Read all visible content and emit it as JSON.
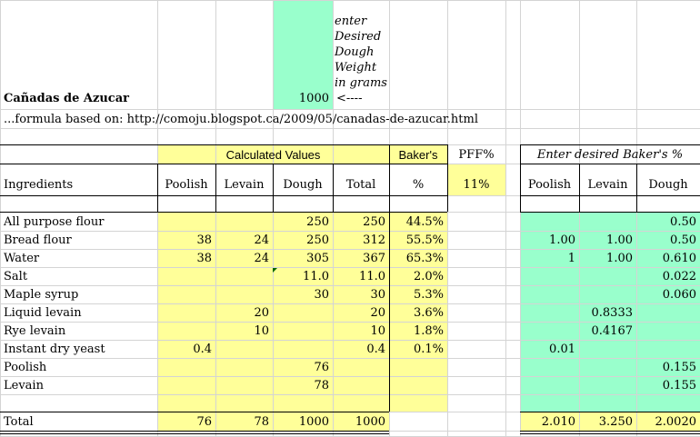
{
  "title": "Cañadas de Azucar",
  "formula_note": "...formula based on: http://comoju.blogspot.ca/2009/05/canadas-de-azucar.html",
  "desired_weight": "1000",
  "arrow": "<----",
  "instruction": "enter\nDesired\nDough\nWeight\nin grams",
  "calc_header": "Calculated Values",
  "bakers_header": "Baker's",
  "bakers_pct": "%",
  "pff_header": "PFF%",
  "pff_value": "11%",
  "enter_header": "Enter desired Baker's %",
  "col_headers": {
    "ingredients": "Ingredients",
    "poolish": "Poolish",
    "levain": "Levain",
    "dough": "Dough",
    "total": "Total",
    "e_poolish": "Poolish",
    "e_levain": "Levain",
    "e_dough": "Dough"
  },
  "rows": [
    {
      "name": "All purpose flour",
      "poolish": "",
      "levain": "",
      "dough": "250",
      "total": "250",
      "bakers": "44.5%",
      "e_poolish": "",
      "e_levain": "",
      "e_dough": "0.50"
    },
    {
      "name": "Bread flour",
      "poolish": "38",
      "levain": "24",
      "dough": "250",
      "total": "312",
      "bakers": "55.5%",
      "e_poolish": "1.00",
      "e_levain": "1.00",
      "e_dough": "0.50"
    },
    {
      "name": "Water",
      "poolish": "38",
      "levain": "24",
      "dough": "305",
      "total": "367",
      "bakers": "65.3%",
      "e_poolish": "1",
      "e_levain": "1.00",
      "e_dough": "0.610"
    },
    {
      "name": "Salt",
      "poolish": "",
      "levain": "",
      "dough": "11.0",
      "total": "11.0",
      "bakers": "2.0%",
      "e_poolish": "",
      "e_levain": "",
      "e_dough": "0.022"
    },
    {
      "name": "Maple syrup",
      "poolish": "",
      "levain": "",
      "dough": "30",
      "total": "30",
      "bakers": "5.3%",
      "e_poolish": "",
      "e_levain": "",
      "e_dough": "0.060"
    },
    {
      "name": "Liquid levain",
      "poolish": "",
      "levain": "20",
      "dough": "",
      "total": "20",
      "bakers": "3.6%",
      "e_poolish": "",
      "e_levain": "0.8333",
      "e_dough": ""
    },
    {
      "name": "Rye levain",
      "poolish": "",
      "levain": "10",
      "dough": "",
      "total": "10",
      "bakers": "1.8%",
      "e_poolish": "",
      "e_levain": "0.4167",
      "e_dough": ""
    },
    {
      "name": "Instant dry yeast",
      "poolish": "0.4",
      "levain": "",
      "dough": "",
      "total": "0.4",
      "bakers": "0.1%",
      "e_poolish": "0.01",
      "e_levain": "",
      "e_dough": ""
    },
    {
      "name": "Poolish",
      "poolish": "",
      "levain": "",
      "dough": "76",
      "total": "",
      "bakers": "",
      "e_poolish": "",
      "e_levain": "",
      "e_dough": "0.155"
    },
    {
      "name": "Levain",
      "poolish": "",
      "levain": "",
      "dough": "78",
      "total": "",
      "bakers": "",
      "e_poolish": "",
      "e_levain": "",
      "e_dough": "0.155"
    },
    {
      "name": "",
      "poolish": "",
      "levain": "",
      "dough": "",
      "total": "",
      "bakers": "",
      "e_poolish": "",
      "e_levain": "",
      "e_dough": ""
    }
  ],
  "total_row": {
    "name": "Total",
    "poolish": "76",
    "levain": "78",
    "dough": "1000",
    "total": "1000",
    "e_poolish": "2.010",
    "e_levain": "3.250",
    "e_dough": "2.0020"
  },
  "colors": {
    "yellow": "#ffff99",
    "green": "#99ffcc",
    "grid": "#d4d4d4"
  }
}
